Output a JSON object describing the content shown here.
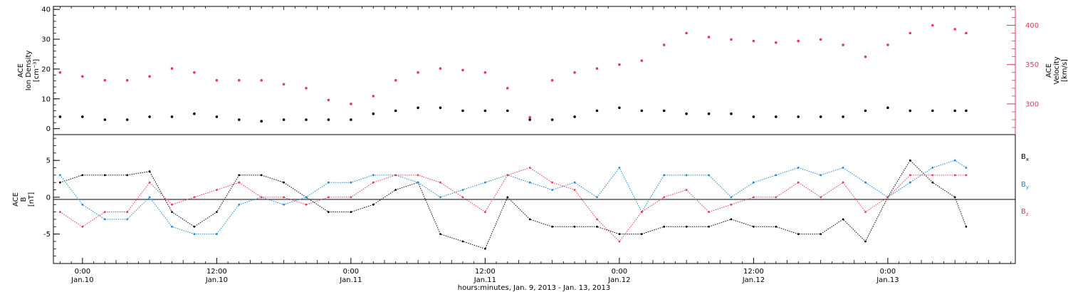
{
  "chart_data": [
    {
      "type": "scatter",
      "panel": "top",
      "left_axis_label": [
        "ACE",
        "Ion Density",
        "[cm⁻³]"
      ],
      "right_axis_label": [
        "ACE",
        "Velocity",
        "[km/s]"
      ],
      "left_ylim": [
        -2,
        41
      ],
      "left_ticks": [
        "0",
        "10",
        "20",
        "30",
        "40"
      ],
      "right_ylim": [
        261,
        424
      ],
      "right_ticks": [
        "300",
        "350",
        "400"
      ],
      "colors": {
        "density": "#000000",
        "velocity": "#e8365e"
      },
      "series": [
        {
          "key": "density",
          "axis": "left",
          "x": [
            -2.0,
            0.0,
            2.0,
            4.0,
            6.0,
            8.0,
            10.0,
            12.0,
            14.0,
            16.0,
            18.0,
            20.0,
            22.0,
            24.0,
            26.0,
            28.0,
            30.0,
            32.0,
            34.0,
            36.0,
            38.0,
            40.0,
            42.0,
            44.0,
            46.0,
            48.0,
            50.0,
            52.0,
            54.0,
            56.0,
            58.0,
            60.0,
            62.0,
            64.0,
            66.0,
            68.0,
            70.0,
            72.0,
            74.0,
            76.0,
            78.0,
            79.0
          ],
          "values": [
            4,
            4,
            3,
            3,
            4,
            4,
            5,
            4,
            3,
            2.5,
            3,
            3,
            3,
            3,
            5,
            6,
            7,
            7,
            6,
            6,
            6,
            3,
            3,
            4,
            6,
            7,
            6,
            6,
            5,
            5,
            5,
            4,
            4,
            4,
            4,
            4,
            6,
            7,
            6,
            6,
            6,
            6
          ]
        },
        {
          "key": "velocity",
          "axis": "right",
          "x": [
            -2.0,
            0.0,
            2.0,
            4.0,
            6.0,
            8.0,
            10.0,
            12.0,
            14.0,
            16.0,
            18.0,
            20.0,
            22.0,
            24.0,
            26.0,
            28.0,
            30.0,
            32.0,
            34.0,
            36.0,
            38.0,
            40.0,
            42.0,
            44.0,
            46.0,
            48.0,
            50.0,
            52.0,
            54.0,
            56.0,
            58.0,
            60.0,
            62.0,
            64.0,
            66.0,
            68.0,
            70.0,
            72.0,
            74.0,
            76.0,
            78.0,
            79.0
          ],
          "values": [
            340,
            335,
            330,
            330,
            335,
            345,
            340,
            330,
            330,
            330,
            325,
            320,
            305,
            300,
            310,
            330,
            340,
            345,
            343,
            340,
            320,
            283,
            330,
            340,
            345,
            350,
            355,
            375,
            390,
            385,
            382,
            380,
            378,
            380,
            382,
            375,
            360,
            375,
            390,
            400,
            395,
            390
          ]
        }
      ]
    },
    {
      "type": "line",
      "panel": "bottom",
      "left_axis_label": [
        "ACE",
        "B",
        "[nT]"
      ],
      "ylim": [
        -9,
        8.5
      ],
      "left_ticks": [
        "-5",
        "0",
        "5"
      ],
      "colors": {
        "bx": "#000000",
        "by": "#1a85e0",
        "bz": "#e8365e"
      },
      "series": [
        {
          "key": "bx",
          "name": "B",
          "subscript": "x",
          "x": [
            -2.0,
            0.0,
            2.0,
            4.0,
            6.0,
            8.0,
            10.0,
            12.0,
            14.0,
            16.0,
            18.0,
            20.0,
            22.0,
            24.0,
            26.0,
            28.0,
            30.0,
            32.0,
            34.0,
            36.0,
            38.0,
            40.0,
            42.0,
            44.0,
            46.0,
            48.0,
            50.0,
            52.0,
            54.0,
            56.0,
            58.0,
            60.0,
            62.0,
            64.0,
            66.0,
            68.0,
            70.0,
            72.0,
            74.0,
            76.0,
            78.0,
            79.0
          ],
          "values": [
            2,
            3,
            3,
            3,
            3.5,
            -2,
            -4,
            -2,
            3,
            3,
            2,
            0,
            -2,
            -2,
            -1,
            1,
            2,
            -5,
            -6,
            -7,
            0,
            -3,
            -4,
            -4,
            -4,
            -5,
            -5,
            -4,
            -4,
            -4,
            -3,
            -4,
            -4,
            -5,
            -5,
            -3,
            -6,
            0,
            5,
            2,
            0,
            -4
          ]
        },
        {
          "key": "by",
          "name": "B",
          "subscript": "y",
          "x": [
            -2.0,
            0.0,
            2.0,
            4.0,
            6.0,
            8.0,
            10.0,
            12.0,
            14.0,
            16.0,
            18.0,
            20.0,
            22.0,
            24.0,
            26.0,
            28.0,
            30.0,
            32.0,
            34.0,
            36.0,
            38.0,
            40.0,
            42.0,
            44.0,
            46.0,
            48.0,
            50.0,
            52.0,
            54.0,
            56.0,
            58.0,
            60.0,
            62.0,
            64.0,
            66.0,
            68.0,
            70.0,
            72.0,
            74.0,
            76.0,
            78.0,
            79.0
          ],
          "values": [
            3,
            -1,
            -3,
            -3,
            0,
            -4,
            -5,
            -5,
            -1,
            0,
            -1,
            0,
            2,
            2,
            3,
            3,
            2,
            0,
            1,
            2,
            3,
            2,
            1,
            2,
            0,
            4,
            -2,
            3,
            3,
            3,
            0,
            2,
            3,
            4,
            3,
            4,
            2,
            0,
            2,
            4,
            5,
            4
          ]
        },
        {
          "key": "bz",
          "name": "B",
          "subscript": "z",
          "x": [
            -2.0,
            0.0,
            2.0,
            4.0,
            6.0,
            8.0,
            10.0,
            12.0,
            14.0,
            16.0,
            18.0,
            20.0,
            22.0,
            24.0,
            26.0,
            28.0,
            30.0,
            32.0,
            34.0,
            36.0,
            38.0,
            40.0,
            42.0,
            44.0,
            46.0,
            48.0,
            50.0,
            52.0,
            54.0,
            56.0,
            58.0,
            60.0,
            62.0,
            64.0,
            66.0,
            68.0,
            70.0,
            72.0,
            74.0,
            76.0,
            78.0,
            79.0
          ],
          "values": [
            -2,
            -4,
            -2,
            -2,
            2,
            -1,
            0,
            1,
            2,
            0,
            0,
            -1,
            0,
            0,
            2,
            3,
            3,
            2,
            0,
            -2,
            3,
            4,
            2,
            1,
            -3,
            -6,
            -2,
            0,
            1,
            -2,
            -1,
            0,
            0,
            2,
            0,
            2,
            -2,
            0,
            3,
            3,
            3,
            3
          ]
        }
      ]
    }
  ],
  "x_axis": {
    "range": [
      -2.6,
      83.4
    ],
    "ticks": [
      {
        "x": 0,
        "time": "0:00",
        "date": "Jan.10"
      },
      {
        "x": 12,
        "time": "12:00",
        "date": "Jan.10"
      },
      {
        "x": 24,
        "time": "0:00",
        "date": "Jan.11"
      },
      {
        "x": 36,
        "time": "12:00",
        "date": "Jan.11"
      },
      {
        "x": 48,
        "time": "0:00",
        "date": "Jan.12"
      },
      {
        "x": 60,
        "time": "12:00",
        "date": "Jan.12"
      },
      {
        "x": 72,
        "time": "0:00",
        "date": "Jan.13"
      }
    ],
    "title": "hours:minutes, Jan. 9, 2013 - Jan. 13, 2013"
  }
}
